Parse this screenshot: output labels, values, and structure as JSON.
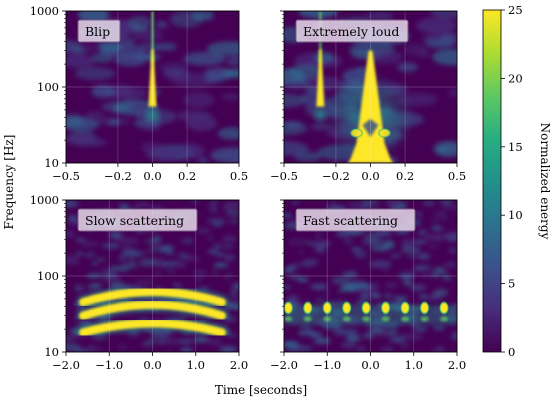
{
  "chart_data": [
    {
      "type": "heatmap",
      "title": "Blip",
      "x_ticks": [
        "-0.5",
        "-0.2",
        "0.0",
        "0.2",
        "0.5"
      ],
      "xlim": [
        -0.5,
        0.5
      ],
      "ylim": [
        10,
        1000
      ],
      "yscale": "log",
      "y_ticks": [
        "10",
        "100",
        "1000"
      ],
      "features": [
        {
          "kind": "spike",
          "center_time": 0.0,
          "freq_range": [
            55,
            1000
          ],
          "peak_energy": 25
        }
      ]
    },
    {
      "type": "heatmap",
      "title": "Extremely loud",
      "x_ticks": [
        "-0.5",
        "-0.2",
        "0.0",
        "0.2",
        "0.5"
      ],
      "xlim": [
        -0.5,
        0.5
      ],
      "ylim": [
        10,
        1000
      ],
      "yscale": "log",
      "features": [
        {
          "kind": "spike",
          "center_time": -0.29,
          "freq_range": [
            55,
            1000
          ],
          "peak_energy": 25
        },
        {
          "kind": "broadband",
          "center_time": 0.0,
          "freq_range": [
            10,
            300
          ],
          "peak_energy": 25
        }
      ]
    },
    {
      "type": "heatmap",
      "title": "Slow scattering",
      "x_ticks": [
        "-2.0",
        "-1.0",
        "0.0",
        "1.0",
        "2.0"
      ],
      "xlim": [
        -2.0,
        2.0
      ],
      "ylim": [
        10,
        1000
      ],
      "yscale": "log",
      "y_ticks": [
        "10",
        "100",
        "1000"
      ],
      "features": [
        {
          "kind": "arch",
          "time_range": [
            -1.6,
            1.6
          ],
          "freq_peak": 62,
          "freq_edge": 45,
          "peak_energy": 25
        },
        {
          "kind": "arch",
          "time_range": [
            -1.6,
            1.6
          ],
          "freq_peak": 42,
          "freq_edge": 30,
          "peak_energy": 25
        },
        {
          "kind": "arch",
          "time_range": [
            -1.6,
            1.6
          ],
          "freq_peak": 24,
          "freq_edge": 18,
          "peak_energy": 25
        }
      ]
    },
    {
      "type": "heatmap",
      "title": "Fast scattering",
      "x_ticks": [
        "-2.0",
        "-1.0",
        "0.0",
        "1.0",
        "2.0"
      ],
      "xlim": [
        -2.0,
        2.0
      ],
      "ylim": [
        10,
        1000
      ],
      "yscale": "log",
      "features": [
        {
          "kind": "periodic_blobs",
          "time_range": [
            -1.9,
            1.9
          ],
          "period": 0.45,
          "freq_center": 38,
          "peak_energy": 22
        }
      ]
    }
  ],
  "shared": {
    "ylabel": "Frequency [Hz]",
    "xlabel": "Time [seconds]"
  },
  "colorbar": {
    "label": "Normalized energy",
    "range": [
      0,
      25
    ],
    "ticks": [
      "0",
      "5",
      "10",
      "15",
      "20",
      "25"
    ],
    "colormap": "viridis"
  },
  "colors": {
    "viridis_low": "#440154",
    "viridis_mid": "#21918c",
    "viridis_high": "#fde725",
    "title_box_fill": "#e6d8ea",
    "title_box_edge": "#7a5b86"
  }
}
